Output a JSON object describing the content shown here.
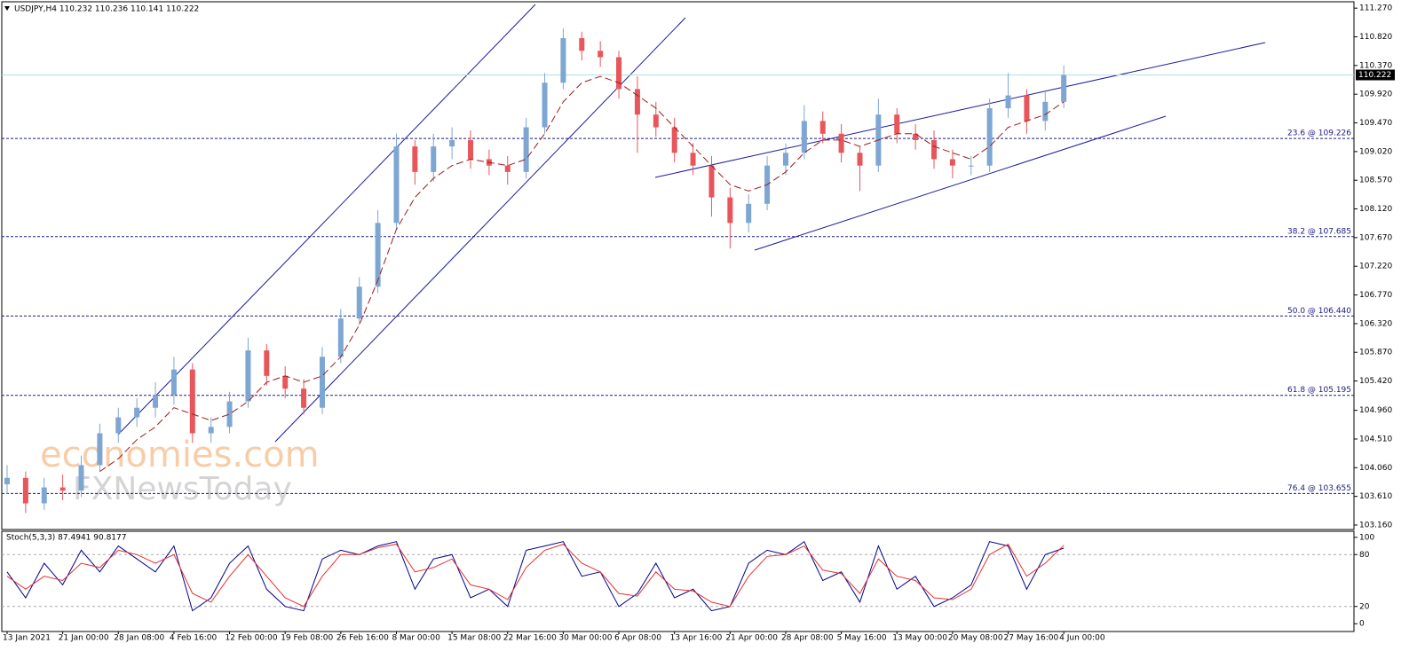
{
  "chart_data": [
    {
      "type": "candlestick",
      "title": "USDJPY,H4  110.232 110.236 110.141 110.222",
      "watermark": [
        "economies.com",
        "FXNewsToday"
      ],
      "categories": [
        "13 Jan 2021",
        null,
        null,
        "21 Jan 00:00",
        null,
        null,
        "28 Jan 08:00",
        null,
        null,
        "4 Feb 16:00",
        null,
        null,
        "12 Feb 00:00",
        null,
        null,
        "19 Feb 08:00",
        null,
        null,
        "26 Feb 16:00",
        null,
        null,
        "8 Mar 00:00",
        null,
        null,
        "15 Mar 08:00",
        null,
        null,
        "22 Mar 16:00",
        null,
        null,
        "30 Mar 00:00",
        null,
        null,
        "6 Apr 08:00",
        null,
        null,
        "13 Apr 16:00",
        null,
        null,
        "21 Apr 00:00",
        null,
        null,
        "28 Apr 08:00",
        null,
        null,
        "5 May 16:00",
        null,
        null,
        "13 May 00:00",
        null,
        null,
        "20 May 08:00",
        null,
        null,
        "27 May 16:00",
        null,
        null,
        "4 Jun 00:00"
      ],
      "open": [
        103.8,
        103.9,
        103.5,
        103.75,
        103.7,
        104.1,
        104.6,
        104.85,
        105.0,
        105.2,
        105.6,
        104.6,
        104.7,
        105.1,
        105.9,
        105.5,
        105.3,
        105.0,
        105.8,
        106.4,
        106.9,
        107.9,
        109.1,
        108.7,
        109.1,
        109.2,
        108.9,
        108.8,
        108.7,
        109.4,
        110.1,
        110.8,
        110.6,
        110.5,
        110.0,
        109.6,
        109.4,
        109.0,
        108.8,
        108.3,
        107.9,
        108.2,
        108.8,
        109.0,
        109.5,
        109.3,
        109.0,
        108.8,
        109.6,
        109.3,
        109.2,
        108.9,
        108.8,
        108.8,
        109.7,
        109.9,
        109.5,
        109.8
      ],
      "high": [
        104.1,
        104.0,
        103.9,
        103.95,
        104.25,
        104.75,
        105.0,
        105.15,
        105.4,
        105.8,
        105.7,
        104.85,
        105.25,
        106.1,
        106.0,
        105.65,
        105.45,
        105.95,
        106.55,
        107.05,
        108.1,
        109.3,
        109.2,
        109.3,
        109.4,
        109.35,
        109.05,
        108.95,
        109.55,
        110.25,
        110.95,
        110.9,
        110.75,
        110.6,
        110.2,
        109.8,
        109.55,
        109.15,
        108.95,
        108.45,
        108.35,
        108.95,
        109.15,
        109.75,
        109.65,
        109.45,
        109.1,
        109.85,
        109.7,
        109.45,
        109.35,
        109.05,
        108.95,
        109.85,
        110.25,
        110.0,
        109.95,
        110.37
      ],
      "low": [
        103.65,
        103.35,
        103.4,
        103.55,
        103.6,
        104.0,
        104.45,
        104.7,
        104.85,
        105.05,
        104.45,
        104.45,
        104.6,
        105.0,
        105.35,
        105.15,
        104.9,
        104.9,
        105.7,
        106.3,
        106.8,
        107.8,
        108.5,
        108.55,
        108.9,
        108.75,
        108.65,
        108.5,
        108.6,
        109.3,
        110.0,
        110.45,
        110.35,
        109.85,
        109.0,
        109.25,
        108.85,
        108.65,
        108.0,
        107.5,
        107.75,
        108.1,
        108.65,
        108.9,
        109.15,
        108.85,
        108.4,
        108.7,
        109.15,
        109.05,
        108.75,
        108.6,
        108.65,
        108.7,
        109.55,
        109.3,
        109.35,
        109.7
      ],
      "close": [
        103.9,
        103.5,
        103.75,
        103.7,
        104.1,
        104.6,
        104.85,
        105.0,
        105.2,
        105.6,
        104.6,
        104.7,
        105.1,
        105.9,
        105.5,
        105.3,
        105.0,
        105.8,
        106.4,
        106.9,
        107.9,
        109.1,
        108.7,
        109.1,
        109.2,
        108.9,
        108.8,
        108.7,
        109.4,
        110.1,
        110.8,
        110.6,
        110.5,
        110.0,
        109.6,
        109.4,
        109.0,
        108.8,
        108.3,
        107.9,
        108.2,
        108.8,
        109.0,
        109.5,
        109.3,
        109.0,
        108.8,
        109.6,
        109.3,
        109.2,
        108.9,
        108.8,
        108.8,
        109.7,
        109.9,
        109.5,
        109.8,
        110.22
      ],
      "up_color": "#7ea6d3",
      "down_color": "#e8555a",
      "ma": {
        "color": "#9b1c1c",
        "values": [
          null,
          null,
          null,
          null,
          null,
          104.0,
          104.2,
          104.5,
          104.7,
          105.0,
          104.9,
          104.8,
          104.9,
          105.1,
          105.4,
          105.5,
          105.4,
          105.5,
          105.8,
          106.3,
          107.0,
          107.8,
          108.3,
          108.6,
          108.8,
          108.9,
          108.85,
          108.8,
          108.9,
          109.3,
          109.8,
          110.1,
          110.2,
          110.1,
          109.9,
          109.7,
          109.4,
          109.1,
          108.8,
          108.5,
          108.4,
          108.5,
          108.7,
          109.0,
          109.2,
          109.2,
          109.1,
          109.2,
          109.3,
          109.3,
          109.1,
          109.0,
          108.9,
          109.1,
          109.4,
          109.5,
          109.6,
          109.8
        ]
      },
      "last_price": 110.222,
      "levels": [
        {
          "value": 109.226,
          "label": "23.6 @ 109.226"
        },
        {
          "value": 107.685,
          "label": "38.2 @ 107.685"
        },
        {
          "value": 106.44,
          "label": "50.0 @ 106.440"
        },
        {
          "value": 105.195,
          "label": "61.8 @ 105.195"
        },
        {
          "value": 103.655,
          "label": "76.4 @ 103.655"
        }
      ],
      "ylim": [
        103.09,
        111.37
      ],
      "yticks": [
        {
          "value": 111.27,
          "label": "111.270"
        },
        {
          "value": 110.82,
          "label": "110.820"
        },
        {
          "value": 110.37,
          "label": "110.370"
        },
        {
          "value": 109.92,
          "label": "109.920"
        },
        {
          "value": 109.47,
          "label": "109.470"
        },
        {
          "value": 109.02,
          "label": "109.020"
        },
        {
          "value": 108.57,
          "label": "108.570"
        },
        {
          "value": 108.12,
          "label": "108.120"
        },
        {
          "value": 107.67,
          "label": "107.670"
        },
        {
          "value": 107.22,
          "label": "107.220"
        },
        {
          "value": 106.77,
          "label": "106.770"
        },
        {
          "value": 106.32,
          "label": "106.320"
        },
        {
          "value": 105.87,
          "label": "105.870"
        },
        {
          "value": 105.42,
          "label": "105.420"
        },
        {
          "value": 104.96,
          "label": "104.960"
        },
        {
          "value": 104.51,
          "label": "104.510"
        },
        {
          "value": 104.06,
          "label": "104.060"
        },
        {
          "value": 103.61,
          "label": "103.610"
        },
        {
          "value": 103.16,
          "label": "103.160"
        }
      ]
    },
    {
      "type": "line",
      "title": "Stoch(5,3,3) 87.4941 90.8177",
      "series": [
        {
          "color": "#00008b",
          "values": [
            60,
            30,
            70,
            45,
            85,
            60,
            90,
            75,
            60,
            90,
            15,
            30,
            70,
            90,
            40,
            20,
            15,
            75,
            85,
            80,
            90,
            95,
            40,
            75,
            80,
            30,
            40,
            20,
            85,
            90,
            95,
            55,
            60,
            20,
            35,
            70,
            30,
            40,
            15,
            20,
            70,
            85,
            80,
            95,
            50,
            60,
            25,
            90,
            40,
            55,
            20,
            30,
            45,
            95,
            90,
            40,
            80,
            87.49
          ]
        },
        {
          "color": "#e8312f",
          "values": [
            55,
            40,
            55,
            50,
            70,
            65,
            85,
            80,
            70,
            80,
            35,
            25,
            55,
            80,
            55,
            30,
            20,
            55,
            80,
            80,
            88,
            92,
            60,
            65,
            75,
            45,
            40,
            28,
            65,
            85,
            92,
            70,
            60,
            35,
            32,
            60,
            40,
            38,
            25,
            20,
            55,
            78,
            80,
            90,
            62,
            58,
            35,
            75,
            55,
            50,
            30,
            28,
            40,
            80,
            92,
            55,
            70,
            90.82
          ]
        }
      ],
      "levels": [
        80,
        20
      ],
      "ylim": [
        -9,
        107
      ],
      "yticks": [
        0,
        20,
        80,
        100
      ]
    }
  ]
}
